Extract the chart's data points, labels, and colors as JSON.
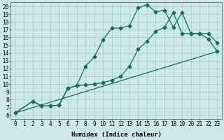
{
  "xlabel": "Humidex (Indice chaleur)",
  "xlim": [
    -0.5,
    23.5
  ],
  "ylim": [
    5.5,
    20.5
  ],
  "xticks": [
    0,
    1,
    2,
    3,
    4,
    5,
    6,
    7,
    8,
    9,
    10,
    11,
    12,
    13,
    14,
    15,
    16,
    17,
    18,
    19,
    20,
    21,
    22,
    23
  ],
  "yticks": [
    6,
    7,
    8,
    9,
    10,
    11,
    12,
    13,
    14,
    15,
    16,
    17,
    18,
    19,
    20
  ],
  "bg_color": "#cce8e8",
  "grid_color": "#a8d0d0",
  "line_color": "#1a6b5a",
  "line1_x": [
    0,
    2,
    3,
    4,
    5,
    6,
    7,
    8,
    9,
    10,
    11,
    12,
    13,
    14,
    15,
    16,
    17,
    18,
    19,
    20,
    21,
    22,
    23
  ],
  "line1_y": [
    6.3,
    7.8,
    7.2,
    7.2,
    7.3,
    9.5,
    9.8,
    12.3,
    13.5,
    15.7,
    17.2,
    17.2,
    17.5,
    19.8,
    20.2,
    19.3,
    19.5,
    17.3,
    19.2,
    16.5,
    16.5,
    16.5,
    15.3
  ],
  "line2_x": [
    0,
    2,
    3,
    4,
    5,
    6,
    7,
    8,
    9,
    10,
    11,
    12,
    13,
    14,
    15,
    16,
    17,
    18,
    19,
    20,
    21,
    22,
    23
  ],
  "line2_y": [
    6.3,
    7.8,
    7.2,
    7.2,
    7.3,
    9.5,
    9.8,
    9.9,
    10.0,
    10.2,
    10.5,
    11.0,
    12.3,
    14.5,
    15.5,
    16.8,
    17.3,
    19.2,
    16.5,
    16.5,
    16.5,
    15.8,
    14.2
  ],
  "line3_x": [
    0,
    23
  ],
  "line3_y": [
    6.3,
    14.2
  ],
  "marker": "D",
  "marker_size": 2.5,
  "fontsize": 6.5,
  "tick_fontsize": 5.5
}
